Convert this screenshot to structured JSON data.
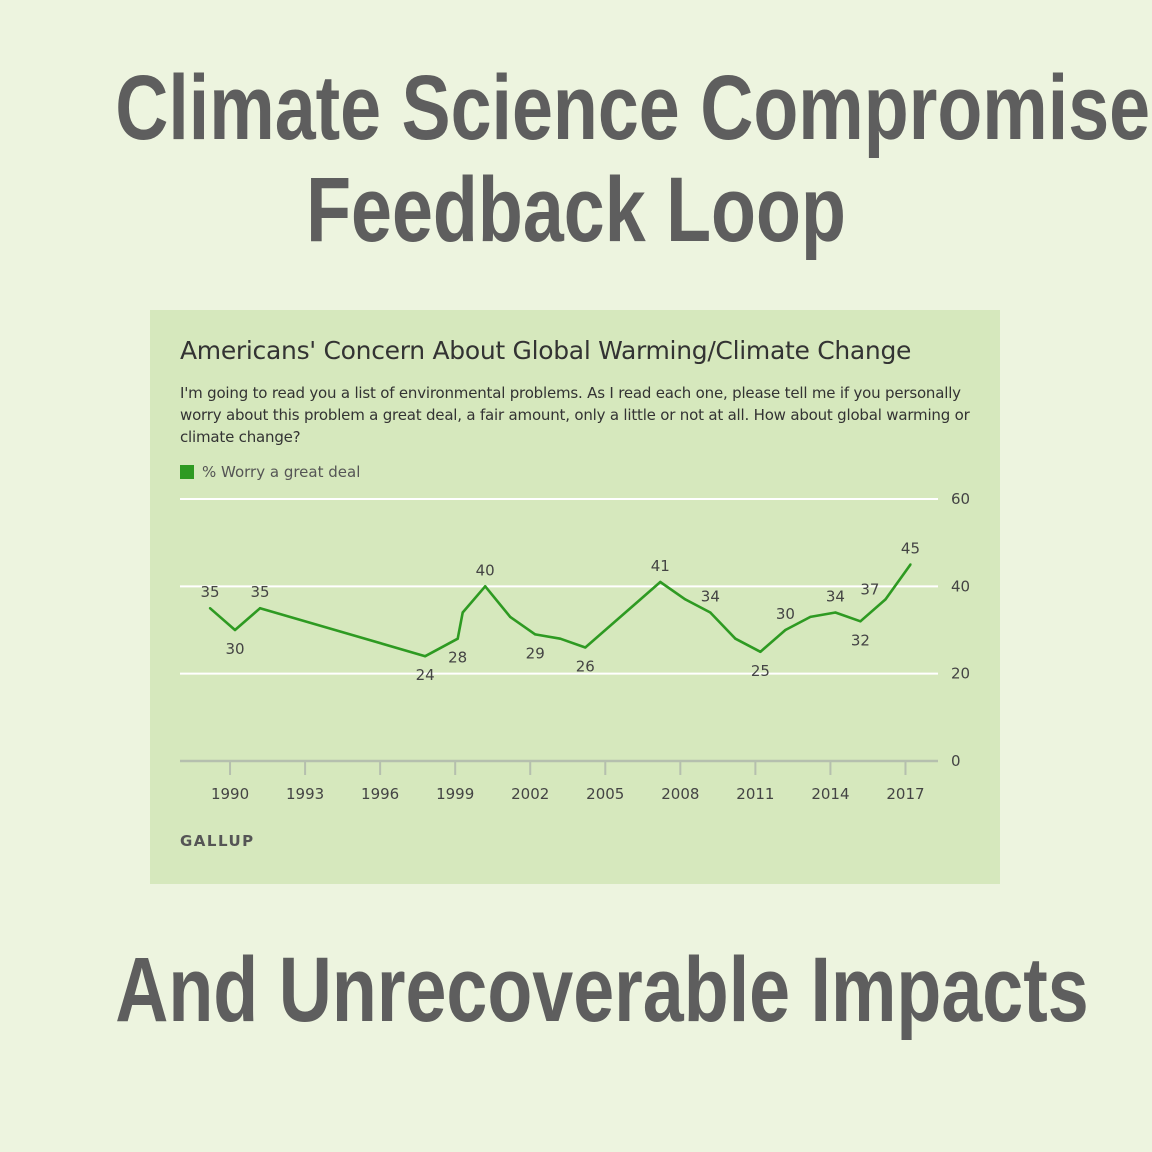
{
  "headline": {
    "line1": "Climate Science Compromise",
    "line2": "Feedback Loop",
    "line3": "And Unrecoverable Impacts"
  },
  "colors": {
    "page_background": "#edf4df",
    "panel_background": "#d6e8bd",
    "line": "#2e9a22",
    "gridline": "#ffffff",
    "axis": "#b5bfae",
    "headline_text": "#5e5e5e"
  },
  "chart_data": {
    "type": "line",
    "title": "Americans' Concern About Global Warming/Climate Change",
    "subtitle": "I'm going to read you a list of environmental problems. As I read each one, please tell me if you personally worry about this problem a great deal, a fair amount, only a little or not at all. How about global warming or climate change?",
    "source": "GALLUP",
    "xlabel": "",
    "ylabel": "",
    "x_ticks": [
      1990,
      1993,
      1996,
      1999,
      2002,
      2005,
      2008,
      2011,
      2014,
      2017
    ],
    "y_ticks": [
      0,
      20,
      40,
      60
    ],
    "xlim": [
      1988,
      2018.3
    ],
    "ylim": [
      0,
      60
    ],
    "grid": true,
    "y_axis_position": "right",
    "legend_placement": "top-left",
    "series": [
      {
        "name": "% Worry a great deal",
        "color": "#2e9a22",
        "points": [
          {
            "x": 1989.2,
            "y": 35,
            "label": "35",
            "label_pos": "above"
          },
          {
            "x": 1990.2,
            "y": 30,
            "label": "30",
            "label_pos": "below"
          },
          {
            "x": 1991.2,
            "y": 35,
            "label": "35",
            "label_pos": "above"
          },
          {
            "x": 1997.8,
            "y": 24,
            "label": "24",
            "label_pos": "below"
          },
          {
            "x": 1999.1,
            "y": 28,
            "label": "28",
            "label_pos": "below"
          },
          {
            "x": 1999.3,
            "y": 34,
            "label": "",
            "label_pos": "none"
          },
          {
            "x": 2000.2,
            "y": 40,
            "label": "40",
            "label_pos": "above"
          },
          {
            "x": 2001.2,
            "y": 33,
            "label": "",
            "label_pos": "none"
          },
          {
            "x": 2002.2,
            "y": 29,
            "label": "29",
            "label_pos": "below"
          },
          {
            "x": 2003.2,
            "y": 28,
            "label": "",
            "label_pos": "none"
          },
          {
            "x": 2004.2,
            "y": 26,
            "label": "26",
            "label_pos": "below"
          },
          {
            "x": 2007.2,
            "y": 41,
            "label": "41",
            "label_pos": "above"
          },
          {
            "x": 2008.2,
            "y": 37,
            "label": "",
            "label_pos": "none"
          },
          {
            "x": 2009.2,
            "y": 34,
            "label": "34",
            "label_pos": "above"
          },
          {
            "x": 2010.2,
            "y": 28,
            "label": "",
            "label_pos": "none"
          },
          {
            "x": 2011.2,
            "y": 25,
            "label": "25",
            "label_pos": "below"
          },
          {
            "x": 2012.2,
            "y": 30,
            "label": "30",
            "label_pos": "above"
          },
          {
            "x": 2013.2,
            "y": 33,
            "label": "",
            "label_pos": "none"
          },
          {
            "x": 2014.2,
            "y": 34,
            "label": "34",
            "label_pos": "above"
          },
          {
            "x": 2015.2,
            "y": 32,
            "label": "32",
            "label_pos": "below"
          },
          {
            "x": 2016.2,
            "y": 37,
            "label": "37",
            "label_pos": "left"
          },
          {
            "x": 2017.2,
            "y": 45,
            "label": "45",
            "label_pos": "above"
          }
        ]
      }
    ]
  }
}
